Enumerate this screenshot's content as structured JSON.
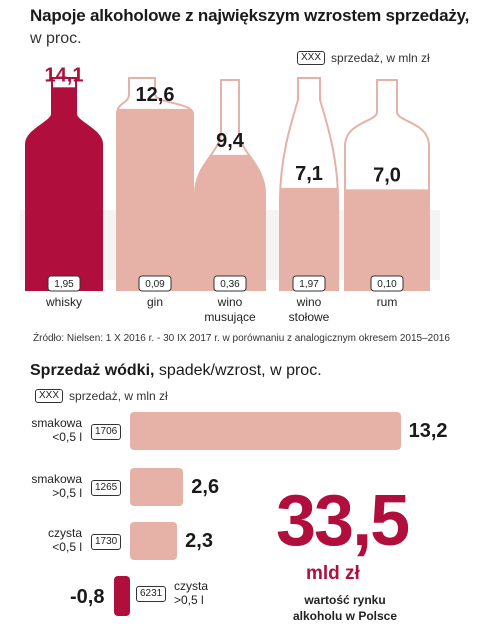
{
  "top": {
    "title": "Napoje alkoholowe z największym wzrostem sprzedaży,",
    "subtitle": "w proc.",
    "legend_box": "XXX",
    "legend_text": "sprzedaż, w mln zł",
    "source": "Źródło: Nielsen: 1 X 2016 r. - 30 IX 2017 r. w porównaniu z analogicznym okresem 2015–2016"
  },
  "bottom": {
    "title_bold": "Sprzedaż wódki,",
    "title_rest": " spadek/wzrost, w proc.",
    "legend_box": "XXX",
    "legend_text": "sprzedaż, w mln zł",
    "total_value": "33,5",
    "total_unit": "mld zł",
    "total_desc_1": "wartość rynku",
    "total_desc_2": "alkoholu w Polsce"
  },
  "colors": {
    "accent": "#b00f3d",
    "bar": "#e6b1a6",
    "bottle_empty": "#f6e3df"
  },
  "chart_data": [
    {
      "type": "bar",
      "title": "Napoje alkoholowe z największym wzrostem sprzedaży,",
      "subtitle": "w proc.",
      "ylabel": "",
      "categories": [
        "whisky",
        "gin",
        "wino musujące",
        "wino stołowe",
        "rum"
      ],
      "values": [
        14.1,
        12.6,
        9.4,
        7.1,
        7.0
      ],
      "value_labels": [
        "14,1",
        "12,6",
        "9,4",
        "7,1",
        "7,0"
      ],
      "sales_mln_zl": [
        "1,95",
        "0,09",
        "0,36",
        "1,97",
        "0,10"
      ],
      "ylim": [
        0,
        16
      ],
      "highlight_index": 0
    },
    {
      "type": "bar",
      "orientation": "horizontal",
      "title": "Sprzedaż wódki, spadek/wzrost, w proc.",
      "categories": [
        {
          "line1": "smakowa",
          "line2": "<0,5 l"
        },
        {
          "line1": "smakowa",
          "line2": ">0,5 l"
        },
        {
          "line1": "czysta",
          "line2": "<0,5 l"
        },
        {
          "line1": "czysta",
          "line2": ">0,5 l"
        }
      ],
      "values": [
        13.2,
        2.6,
        2.3,
        -0.8
      ],
      "value_labels": [
        "13,2",
        "2,6",
        "2,3",
        "-0,8"
      ],
      "sales_mln_zl": [
        "1706",
        "1265",
        "1730",
        "6231"
      ]
    }
  ]
}
